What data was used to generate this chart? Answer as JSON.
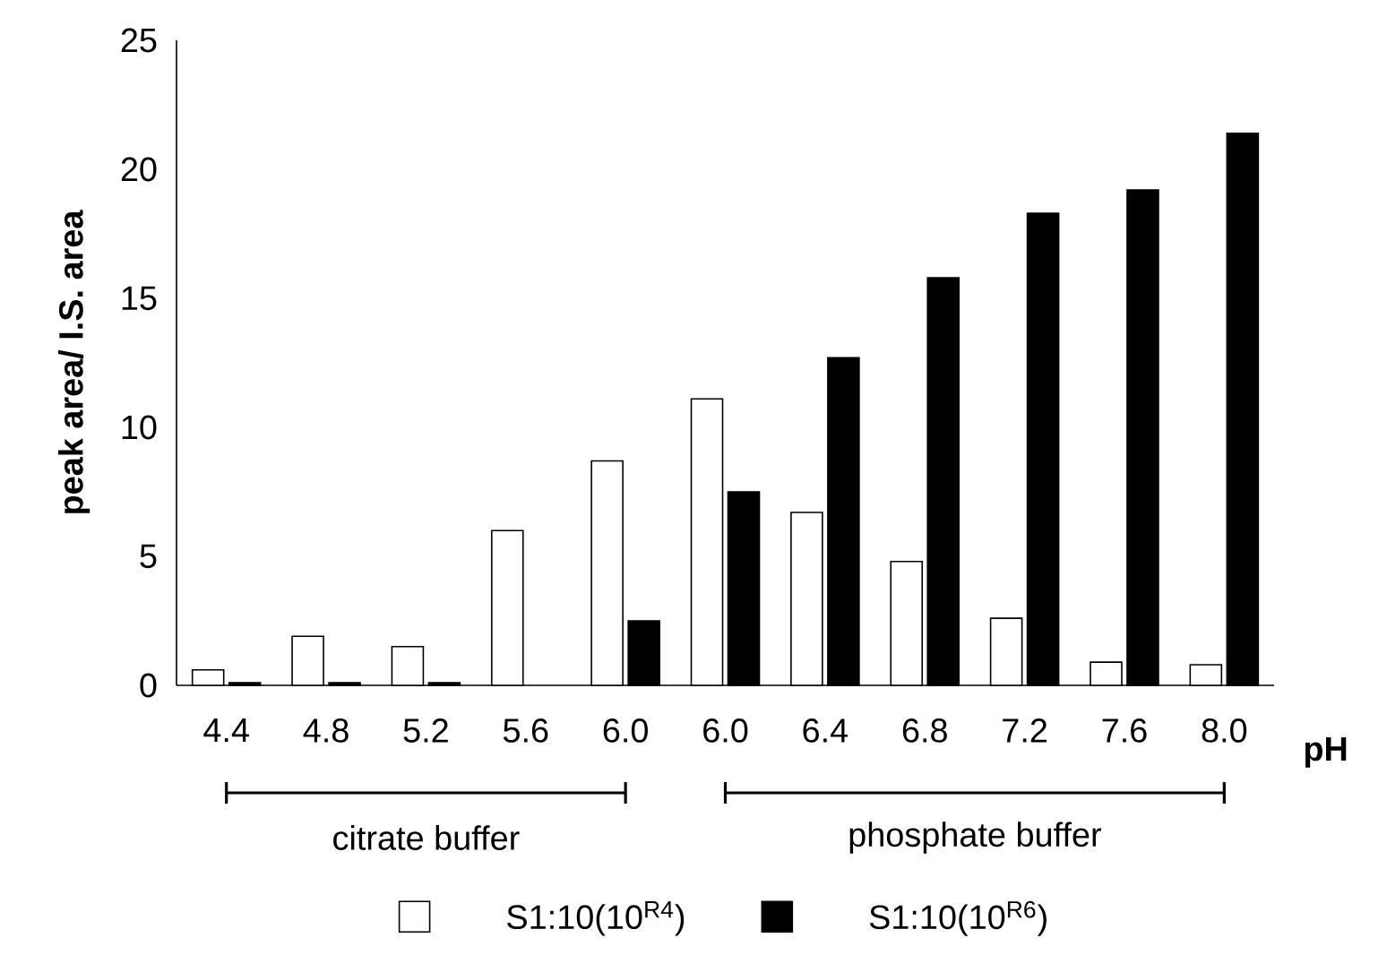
{
  "chart_data": {
    "type": "bar",
    "categories": [
      "4.4",
      "4.8",
      "5.2",
      "5.6",
      "6.0",
      "6.0",
      "6.4",
      "6.8",
      "7.2",
      "7.6",
      "8.0"
    ],
    "series": [
      {
        "name": "S1:10(10$^{R4}$)",
        "color": "#ffffff",
        "values": [
          0.6,
          1.9,
          1.5,
          6.0,
          8.7,
          11.1,
          6.7,
          4.8,
          2.6,
          0.9,
          0.8
        ]
      },
      {
        "name": "S1:10(10$^{R6}$)",
        "color": "#000000",
        "values": [
          0.1,
          0.1,
          0.1,
          null,
          2.5,
          7.5,
          12.7,
          15.8,
          18.3,
          19.2,
          21.4
        ]
      }
    ],
    "xlabel": "pH",
    "ylabel": "peak area/ I.S. area",
    "ylim": [
      0,
      25
    ],
    "yticks": [
      0,
      5,
      10,
      15,
      20,
      25
    ],
    "annotations": [
      "citrate buffer",
      "phosphate buffer"
    ],
    "legend": "bottom",
    "grid": false
  }
}
